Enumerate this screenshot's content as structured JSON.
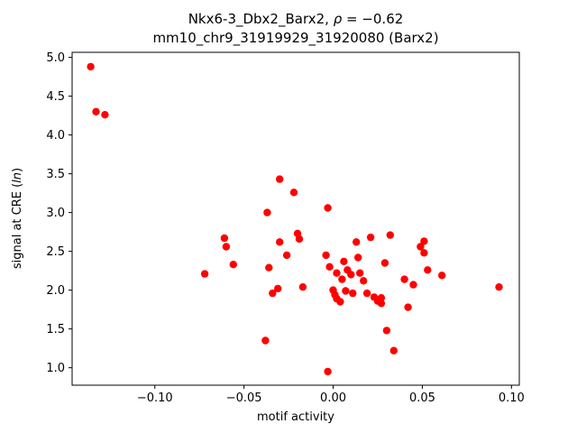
{
  "title": {
    "line1_prefix": "Nkx6-3_Dbx2_Barx2, ",
    "rho": "ρ",
    "line1_suffix": " = −0.62",
    "line2": "mm10_chr9_31919929_31920080 (Barx2)"
  },
  "axes": {
    "xlabel": "motif activity",
    "ylabel_prefix": "signal at CRE (",
    "ylabel_italic": "ln",
    "ylabel_suffix": ")"
  },
  "chart_data": {
    "type": "scatter",
    "marker_color": "#ff0000",
    "marker_radius": 4.2,
    "xlim": [
      -0.1464,
      0.1044
    ],
    "ylim": [
      0.775,
      5.065
    ],
    "xticks": [
      -0.1,
      -0.05,
      0.0,
      0.05,
      0.1
    ],
    "xtick_labels": [
      "−0.10",
      "−0.05",
      "0.00",
      "0.05",
      "0.10"
    ],
    "yticks": [
      1.0,
      1.5,
      2.0,
      2.5,
      3.0,
      3.5,
      4.0,
      4.5,
      5.0
    ],
    "ytick_labels": [
      "1.0",
      "1.5",
      "2.0",
      "2.5",
      "3.0",
      "3.5",
      "4.0",
      "4.5",
      "5.0"
    ],
    "points": [
      [
        -0.136,
        4.88
      ],
      [
        -0.133,
        4.3
      ],
      [
        -0.128,
        4.26
      ],
      [
        -0.072,
        2.21
      ],
      [
        -0.061,
        2.67
      ],
      [
        -0.06,
        2.56
      ],
      [
        -0.056,
        2.33
      ],
      [
        -0.037,
        3.0
      ],
      [
        -0.036,
        2.29
      ],
      [
        -0.038,
        1.35
      ],
      [
        -0.034,
        1.96
      ],
      [
        -0.031,
        2.02
      ],
      [
        -0.03,
        3.43
      ],
      [
        -0.03,
        2.62
      ],
      [
        -0.026,
        2.45
      ],
      [
        -0.022,
        3.26
      ],
      [
        -0.02,
        2.73
      ],
      [
        -0.019,
        2.66
      ],
      [
        -0.017,
        2.04
      ],
      [
        -0.003,
        3.06
      ],
      [
        -0.004,
        2.45
      ],
      [
        -0.003,
        0.95
      ],
      [
        -0.002,
        2.3
      ],
      [
        0.0,
        2.0
      ],
      [
        0.001,
        1.94
      ],
      [
        0.002,
        2.22
      ],
      [
        0.002,
        1.89
      ],
      [
        0.004,
        1.85
      ],
      [
        0.005,
        2.14
      ],
      [
        0.006,
        2.37
      ],
      [
        0.007,
        1.99
      ],
      [
        0.008,
        2.26
      ],
      [
        0.01,
        2.2
      ],
      [
        0.011,
        1.96
      ],
      [
        0.013,
        2.62
      ],
      [
        0.014,
        2.42
      ],
      [
        0.015,
        2.22
      ],
      [
        0.017,
        2.12
      ],
      [
        0.019,
        1.96
      ],
      [
        0.021,
        2.68
      ],
      [
        0.023,
        1.91
      ],
      [
        0.025,
        1.86
      ],
      [
        0.027,
        1.83
      ],
      [
        0.027,
        1.9
      ],
      [
        0.029,
        2.35
      ],
      [
        0.03,
        1.48
      ],
      [
        0.032,
        2.71
      ],
      [
        0.034,
        1.22
      ],
      [
        0.04,
        2.14
      ],
      [
        0.042,
        1.78
      ],
      [
        0.045,
        2.07
      ],
      [
        0.049,
        2.56
      ],
      [
        0.051,
        2.63
      ],
      [
        0.051,
        2.48
      ],
      [
        0.053,
        2.26
      ],
      [
        0.061,
        2.19
      ],
      [
        0.093,
        2.04
      ]
    ]
  }
}
